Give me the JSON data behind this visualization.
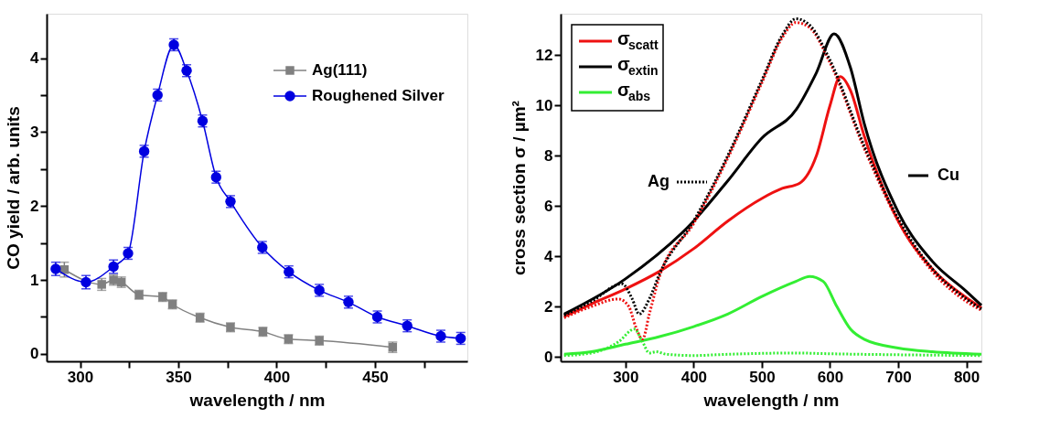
{
  "chart_data": [
    {
      "type": "line",
      "xlabel": "wavelength / nm",
      "ylabel": "CO yield / arb. units",
      "xlim": [
        283,
        497
      ],
      "ylim": [
        -0.1,
        4.6
      ],
      "xticks": [
        300,
        {
          "value": 325,
          "label": null
        },
        350,
        {
          "value": 375,
          "label": null
        },
        400,
        {
          "value": 425,
          "label": null
        },
        450,
        {
          "value": 475,
          "label": null
        }
      ],
      "yticks": [
        0,
        {
          "value": 0.5,
          "label": null
        },
        1,
        {
          "value": 1.5,
          "label": null
        },
        2,
        {
          "value": 2.5,
          "label": null
        },
        3,
        {
          "value": 3.5,
          "label": null
        },
        4
      ],
      "grid": false,
      "legend": "top right",
      "series": [
        {
          "name": "Ag(111)",
          "color": "#808080",
          "marker": "square",
          "x": [
            292,
            311,
            317,
            321,
            330,
            342,
            347,
            361,
            376.5,
            393,
            406,
            421.7,
            459
          ],
          "values": [
            1.14,
            0.94,
            1.0,
            0.97,
            0.8,
            0.77,
            0.67,
            0.49,
            0.36,
            0.3,
            0.2,
            0.18,
            0.09
          ],
          "errors": [
            0.1,
            0.08,
            0.07,
            0.07,
            0.06,
            0.06,
            0.06,
            0.06,
            0.06,
            0.06,
            0.06,
            0.06,
            0.07
          ]
        },
        {
          "name": "Roughened Silver",
          "color": "#0000e0",
          "marker": "circle",
          "x": [
            287.6,
            303,
            317,
            324.4,
            332.6,
            339.4,
            347.7,
            354.2,
            362.3,
            369.2,
            376.5,
            392.7,
            406.2,
            421.7,
            436.5,
            451.2,
            466.4,
            483.5,
            493.6
          ],
          "values": [
            1.15,
            0.97,
            1.18,
            1.36,
            2.74,
            3.5,
            4.18,
            3.83,
            3.15,
            2.39,
            2.06,
            1.44,
            1.11,
            0.86,
            0.7,
            0.5,
            0.38,
            0.24,
            0.21
          ],
          "errors": [
            0.09,
            0.09,
            0.09,
            0.08,
            0.08,
            0.08,
            0.08,
            0.08,
            0.08,
            0.08,
            0.08,
            0.08,
            0.08,
            0.08,
            0.08,
            0.08,
            0.08,
            0.08,
            0.08
          ]
        }
      ]
    },
    {
      "type": "line",
      "xlabel": "wavelength / nm",
      "ylabel": "cross section σ / µm²",
      "xlim": [
        205,
        822
      ],
      "ylim": [
        -0.18,
        13.65
      ],
      "xticks": [
        300,
        400,
        500,
        600,
        700,
        800
      ],
      "yticks": [
        0,
        2,
        4,
        6,
        8,
        10,
        12
      ],
      "grid": false,
      "legend": "top left",
      "annotations": [
        "Ag",
        "Cu"
      ],
      "series": [
        {
          "name": "σ$_{scatt}$",
          "color": "#ee1111",
          "line_style": "solid",
          "x": [
            210,
            250,
            300,
            350,
            400,
            450,
            500,
            530,
            555,
            580,
            600,
            615,
            630,
            650,
            700,
            750,
            800,
            822
          ],
          "values": [
            1.6,
            2.1,
            2.7,
            3.4,
            4.3,
            5.4,
            6.3,
            6.7,
            6.9,
            8.0,
            10.0,
            11.15,
            10.6,
            8.8,
            5.4,
            3.5,
            2.35,
            1.95
          ]
        },
        {
          "name": "σ$_{extin}$",
          "color": "#000000",
          "line_style": "solid",
          "x": [
            210,
            300,
            400,
            450,
            500,
            551,
            580,
            606,
            630,
            650,
            700,
            750,
            800,
            822
          ],
          "values": [
            1.7,
            3.1,
            5.4,
            7.0,
            8.7,
            9.86,
            11.3,
            12.85,
            11.5,
            9.3,
            5.76,
            3.8,
            2.6,
            2.05
          ]
        },
        {
          "name": "σ$_{abs}$",
          "color": "#33ee33",
          "line_style": "solid",
          "x": [
            210,
            250,
            300,
            350,
            400,
            450,
            500,
            550,
            570,
            590,
            610,
            630,
            650,
            700,
            750,
            822
          ],
          "values": [
            0.1,
            0.2,
            0.5,
            0.8,
            1.2,
            1.7,
            2.4,
            3.0,
            3.2,
            3.0,
            2.0,
            1.1,
            0.7,
            0.35,
            0.2,
            0.1
          ]
        },
        {
          "color": "#ee1111",
          "line_style": "dotted",
          "x": [
            210,
            250,
            290,
            305,
            315,
            325,
            335,
            350,
            400,
            450,
            500,
            530,
            550,
            570,
            600,
            650,
            700,
            750,
            800,
            822
          ],
          "values": [
            1.55,
            2.0,
            2.3,
            2.0,
            1.2,
            0.7,
            1.7,
            3.2,
            5.3,
            7.9,
            10.9,
            12.7,
            13.3,
            13.1,
            11.7,
            8.3,
            5.4,
            3.4,
            2.2,
            1.85
          ]
        },
        {
          "color": "#000000",
          "line_style": "dotted",
          "x": [
            210,
            250,
            295,
            310,
            320,
            335,
            350,
            400,
            450,
            500,
            530,
            550,
            570,
            600,
            650,
            700,
            750,
            800,
            822
          ],
          "values": [
            1.65,
            2.2,
            2.9,
            2.3,
            1.7,
            2.3,
            3.3,
            5.4,
            8.0,
            11.0,
            12.8,
            13.45,
            13.2,
            11.8,
            8.4,
            5.5,
            3.5,
            2.3,
            1.9
          ]
        },
        {
          "color": "#33ee33",
          "line_style": "dotted",
          "x": [
            210,
            250,
            290,
            313,
            325,
            335,
            345,
            360,
            400,
            450,
            550,
            600,
            700,
            822
          ],
          "values": [
            0.05,
            0.15,
            0.6,
            1.1,
            0.6,
            0.15,
            0.2,
            0.1,
            0.05,
            0.1,
            0.15,
            0.12,
            0.08,
            0.05
          ]
        }
      ]
    }
  ]
}
